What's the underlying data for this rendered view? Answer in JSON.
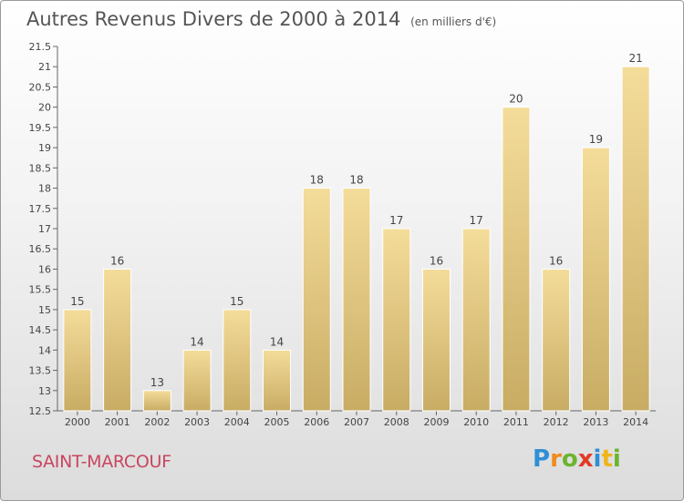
{
  "header": {
    "title": "Autres Revenus Divers de 2000 à 2014",
    "unit": "(en milliers d'€)"
  },
  "footer": {
    "commune": "SAINT-MARCOUF",
    "logo_letters": [
      "P",
      "r",
      "o",
      "x",
      "i",
      "t",
      "i"
    ],
    "logo_colors": [
      "#2f8fd6",
      "#f08a1c",
      "#6bb42d",
      "#e23a26",
      "#2f8fd6",
      "#f0b41c",
      "#6bb42d"
    ]
  },
  "chart_data": {
    "type": "bar",
    "title": "Autres Revenus Divers de 2000 à 2014",
    "subtitle": "(en milliers d'€)",
    "xlabel": "",
    "ylabel": "",
    "categories": [
      "2000",
      "2001",
      "2002",
      "2003",
      "2004",
      "2005",
      "2006",
      "2007",
      "2008",
      "2009",
      "2010",
      "2011",
      "2012",
      "2013",
      "2014"
    ],
    "values": [
      15,
      16,
      13,
      14,
      15,
      14,
      18,
      18,
      17,
      16,
      17,
      20,
      16,
      19,
      21
    ],
    "data_labels": [
      "15",
      "16",
      "13",
      "14",
      "15",
      "14",
      "18",
      "18",
      "17",
      "16",
      "17",
      "20",
      "16",
      "19",
      "21"
    ],
    "ylim": [
      12.5,
      21.5
    ],
    "yticks": [
      "12.5",
      "13",
      "13.5",
      "14",
      "14.5",
      "15",
      "15.5",
      "16",
      "16.5",
      "17",
      "17.5",
      "18",
      "18.5",
      "19",
      "19.5",
      "20",
      "20.5",
      "21",
      "21.5"
    ],
    "grid": false,
    "bar_colors": {
      "light": "#f4dc9a",
      "dark": "#c8ac64"
    }
  }
}
